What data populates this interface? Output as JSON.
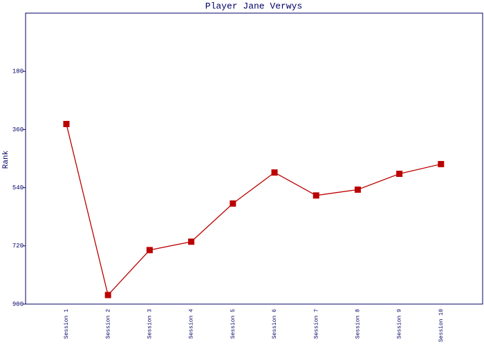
{
  "chart_data": {
    "type": "line",
    "title": "Player Jane Verwys",
    "y_label": "Rank",
    "categories": [
      "Session 1",
      "Session 2",
      "Session 3",
      "Session 4",
      "Session 5",
      "Session 6",
      "Session 7",
      "Session 8",
      "Session 9",
      "Session 10"
    ],
    "series": [
      {
        "name": "Rank",
        "color": "#bb0000",
        "values": [
          343,
          872,
          733,
          707,
          589,
          493,
          564,
          546,
          497,
          467
        ]
      }
    ],
    "ylim": [
      900,
      0
    ],
    "yticks": [
      180,
      360,
      540,
      720,
      900
    ],
    "grid": false
  }
}
